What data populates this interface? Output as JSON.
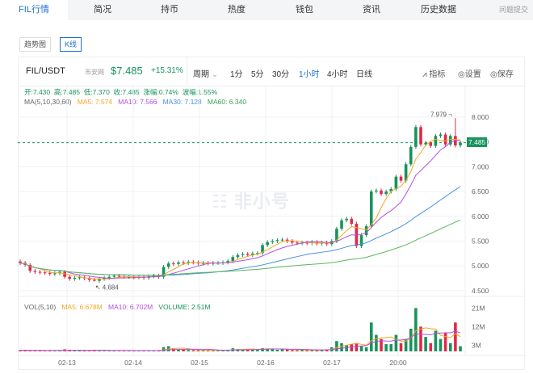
{
  "tabs": [
    {
      "label": "FIL行情",
      "active": true
    },
    {
      "label": "简况"
    },
    {
      "label": "持币"
    },
    {
      "label": "热度"
    },
    {
      "label": "钱包"
    },
    {
      "label": "资讯"
    },
    {
      "label": "历史数据"
    }
  ],
  "feedback": "问题提交",
  "modes": {
    "trend": "趋势图",
    "kline": "K线",
    "active": "kline"
  },
  "header": {
    "pair": "FIL/USDT",
    "exchange": "币安网",
    "price": "$7.485",
    "change": "+15.31%",
    "period_label": "周期",
    "periods": [
      "1分",
      "5分",
      "30分",
      "1小时",
      "4小时",
      "日线"
    ],
    "active_period": "1小时",
    "tools": {
      "indicator": "指标",
      "settings": "设置",
      "save": "保存"
    }
  },
  "info": {
    "open": "开:7.430",
    "high": "高:7.485",
    "low": "低:7.370",
    "close": "收:7.485",
    "change": "涨幅:0.74%",
    "amplitude": "波幅:1.55%",
    "ma_label": "MA(5,10,30,60)",
    "ma5": "MA5: 7.574",
    "ma10": "MA10: 7.566",
    "ma30": "MA30: 7.128",
    "ma60": "MA60: 6.340"
  },
  "vol_info": {
    "label": "VOL(5,10)",
    "ma5": "MA5: 6.678M",
    "ma10": "MA10: 6.702M",
    "volume": "VOLUME: 2.51M"
  },
  "watermark": "☷ 非小号",
  "colors": {
    "up": "#17935c",
    "down": "#e0294a",
    "ma5": "#f5a623",
    "ma10": "#b44fe0",
    "ma30": "#4a90e2",
    "ma60": "#5cb85c"
  },
  "chart_data": {
    "type": "candlestick",
    "price_axis": {
      "ticks": [
        "8.000",
        "7.500",
        "7.000",
        "6.500",
        "6.000",
        "5.500",
        "5.000",
        "4.500"
      ],
      "range": [
        4.4,
        8.25
      ]
    },
    "volume_axis": {
      "ticks": [
        "21M",
        "12M",
        "3M"
      ],
      "range": [
        0,
        24
      ]
    },
    "x_ticks": [
      "02-13",
      "02-14",
      "02-15",
      "02-16",
      "02-17",
      "20:00"
    ],
    "current_price": "7.485",
    "max_label": "7.979",
    "min_label": "4.684",
    "closes": [
      5.06,
      5.02,
      4.9,
      4.88,
      4.87,
      4.86,
      4.84,
      4.85,
      4.88,
      4.78,
      4.74,
      4.76,
      4.77,
      4.75,
      4.72,
      4.7,
      4.74,
      4.76,
      4.78,
      4.8,
      4.79,
      4.78,
      4.78,
      4.77,
      4.78,
      4.76,
      4.79,
      4.8,
      4.78,
      4.98,
      5.05,
      5.04,
      5.07,
      5.06,
      5.08,
      5.07,
      5.05,
      5.06,
      5.05,
      5.06,
      5.06,
      5.07,
      5.1,
      5.18,
      5.22,
      5.24,
      5.22,
      5.25,
      5.26,
      5.42,
      5.48,
      5.5,
      5.52,
      5.53,
      5.5,
      5.47,
      5.46,
      5.47,
      5.46,
      5.48,
      5.45,
      5.47,
      5.44,
      5.5,
      5.75,
      5.92,
      5.95,
      5.85,
      5.4,
      5.62,
      5.8,
      6.5,
      6.52,
      6.45,
      6.5,
      6.55,
      6.8,
      6.72,
      7.05,
      7.4,
      7.8,
      7.45,
      7.48,
      7.42,
      7.62,
      7.65,
      7.45,
      7.62,
      7.43,
      7.485
    ],
    "highs": {
      "15": 4.684,
      "88": 7.979
    },
    "volumes": [
      0.6,
      0.5,
      0.4,
      0.5,
      0.4,
      0.3,
      0.5,
      0.4,
      0.6,
      1.0,
      0.5,
      0.4,
      0.5,
      0.4,
      0.5,
      0.6,
      0.4,
      0.3,
      0.4,
      0.5,
      0.4,
      0.3,
      0.4,
      0.3,
      0.5,
      0.4,
      0.3,
      0.4,
      0.5,
      2.0,
      2.5,
      1.5,
      1.0,
      0.8,
      0.7,
      0.6,
      0.5,
      0.4,
      0.5,
      0.4,
      0.6,
      0.5,
      0.8,
      1.5,
      1.2,
      1.0,
      0.8,
      1.2,
      1.0,
      1.6,
      1.4,
      1.0,
      0.8,
      1.2,
      0.9,
      0.6,
      0.5,
      0.6,
      0.5,
      0.7,
      0.6,
      0.8,
      1.0,
      2.0,
      5.0,
      4.0,
      3.0,
      3.5,
      4.0,
      2.5,
      2.0,
      14,
      8,
      6,
      3.5,
      3.5,
      8,
      4,
      6,
      11,
      21,
      12,
      7,
      4,
      10,
      6,
      9,
      4,
      14,
      2.51
    ]
  }
}
